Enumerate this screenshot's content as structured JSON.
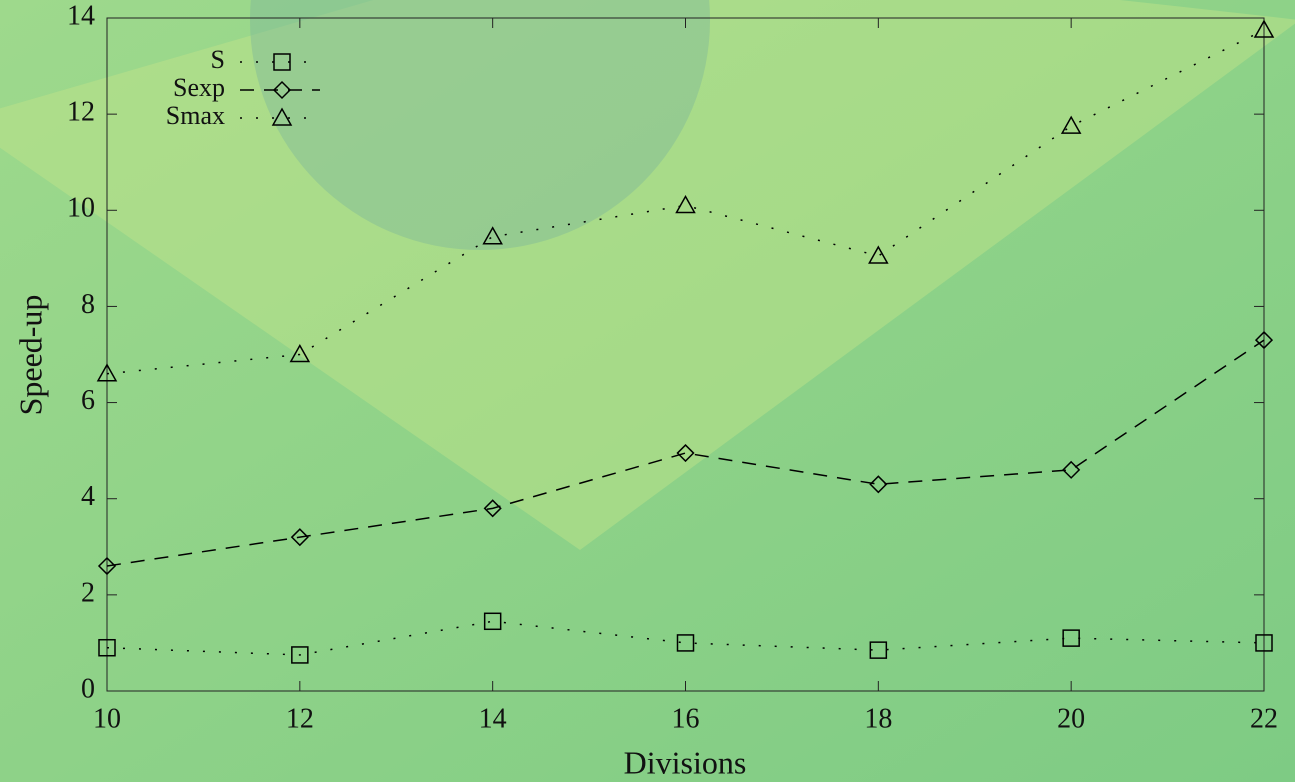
{
  "chart_data": {
    "type": "line",
    "xlabel": "Divisions",
    "ylabel": "Speed-up",
    "x": [
      10,
      12,
      14,
      16,
      18,
      20,
      22
    ],
    "xlim": [
      10,
      22
    ],
    "xticks": [
      10,
      12,
      14,
      16,
      18,
      20,
      22
    ],
    "ylim": [
      0,
      14
    ],
    "yticks": [
      0,
      2,
      4,
      6,
      8,
      10,
      12,
      14
    ],
    "legend": "upper-left",
    "series": [
      {
        "name": "S",
        "color": "#000000",
        "marker": "square",
        "linestyle": "dotted",
        "values": [
          0.9,
          0.75,
          1.45,
          1.0,
          0.85,
          1.1,
          1.0
        ]
      },
      {
        "name": "Sexp",
        "color": "#000000",
        "marker": "diamond",
        "linestyle": "dashed",
        "values": [
          2.6,
          3.2,
          3.8,
          4.95,
          4.3,
          4.6,
          7.3
        ]
      },
      {
        "name": "Smax",
        "color": "#000000",
        "marker": "triangle",
        "linestyle": "dotted",
        "values": [
          6.6,
          7.0,
          9.45,
          10.1,
          9.05,
          11.75,
          13.75
        ]
      }
    ]
  }
}
